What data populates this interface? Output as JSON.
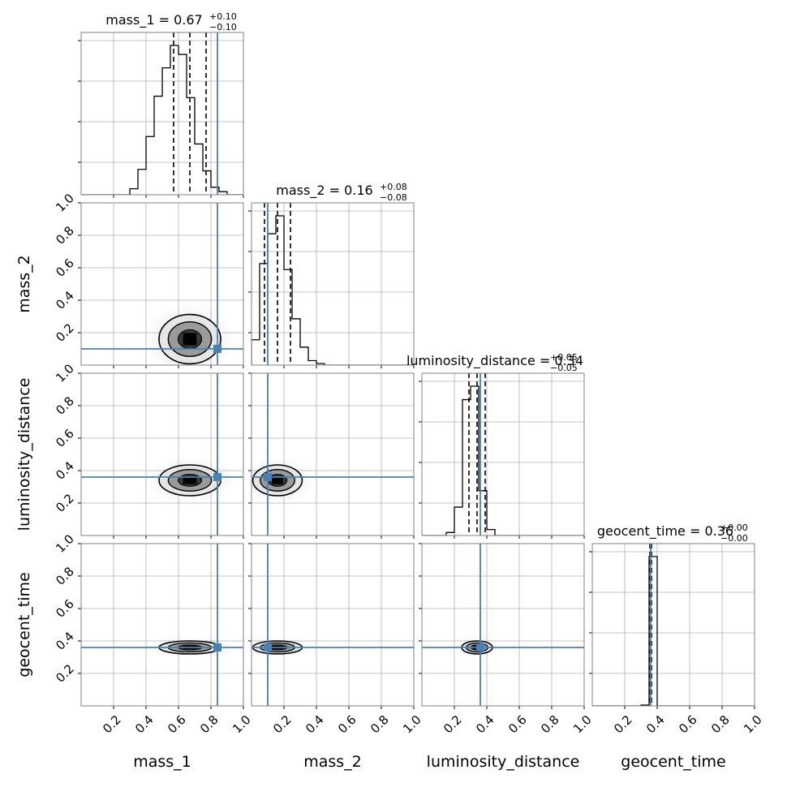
{
  "chart_data": {
    "type": "corner",
    "parameters": [
      "mass_1",
      "mass_2",
      "luminosity_distance",
      "geocent_time"
    ],
    "axis_labels": [
      "mass_1",
      "mass_2",
      "luminosity_distance",
      "geocent_time"
    ],
    "titles": [
      {
        "label": "mass_1 = 0.67",
        "plus": "+0.10",
        "minus": "−0.10"
      },
      {
        "label": "mass_2 = 0.16",
        "plus": "+0.08",
        "minus": "−0.08"
      },
      {
        "label": "luminosity_distance = 0.34",
        "plus": "+0.05",
        "minus": "−0.05"
      },
      {
        "label": "geocent_time = 0.36",
        "plus": "+0.00",
        "minus": "−0.00"
      }
    ],
    "axis_range": [
      0,
      1
    ],
    "tick_values": [
      0.2,
      0.4,
      0.6,
      0.8,
      1.0
    ],
    "tick_labels": [
      "0.2",
      "0.4",
      "0.6",
      "0.8",
      "1.0"
    ],
    "grid": true,
    "truths": [
      0.84,
      0.1,
      0.36,
      0.36
    ],
    "truth_color": "#4682b4",
    "quantiles": [
      [
        0.57,
        0.67,
        0.77
      ],
      [
        0.08,
        0.16,
        0.24
      ],
      [
        0.29,
        0.34,
        0.39
      ],
      [
        0.355,
        0.36,
        0.365
      ]
    ],
    "histograms": [
      {
        "bin_width": 0.05,
        "start": 0.3,
        "counts": [
          0.04,
          0.17,
          0.39,
          0.66,
          0.85,
          1.0,
          0.94,
          0.65,
          0.34,
          0.16,
          0.05,
          0.02
        ]
      },
      {
        "bin_width": 0.05,
        "start": 0.0,
        "counts": [
          0.17,
          0.68,
          0.88,
          1.0,
          0.64,
          0.31,
          0.12,
          0.03,
          0.01
        ]
      },
      {
        "bin_width": 0.05,
        "start": 0.15,
        "counts": [
          0.02,
          0.19,
          0.91,
          1.0,
          0.3,
          0.04
        ]
      },
      {
        "bin_width": 0.05,
        "start": 0.3,
        "counts": [
          0.005,
          1.0,
          0.0
        ]
      }
    ],
    "density_2d": [
      {
        "row": 1,
        "col": 0,
        "center": [
          0.67,
          0.16
        ],
        "spread": [
          0.1,
          0.08
        ]
      },
      {
        "row": 2,
        "col": 0,
        "center": [
          0.67,
          0.34
        ],
        "spread": [
          0.1,
          0.05
        ]
      },
      {
        "row": 2,
        "col": 1,
        "center": [
          0.16,
          0.34
        ],
        "spread": [
          0.08,
          0.05
        ]
      },
      {
        "row": 3,
        "col": 0,
        "center": [
          0.67,
          0.36
        ],
        "spread": [
          0.1,
          0.008
        ]
      },
      {
        "row": 3,
        "col": 1,
        "center": [
          0.16,
          0.36
        ],
        "spread": [
          0.08,
          0.008
        ]
      },
      {
        "row": 3,
        "col": 2,
        "center": [
          0.34,
          0.36
        ],
        "spread": [
          0.05,
          0.008
        ]
      }
    ],
    "colors": {
      "hist": "#000000",
      "truth": "#4682b4",
      "grid": "#b0b0b0",
      "frame": "#808080"
    }
  }
}
